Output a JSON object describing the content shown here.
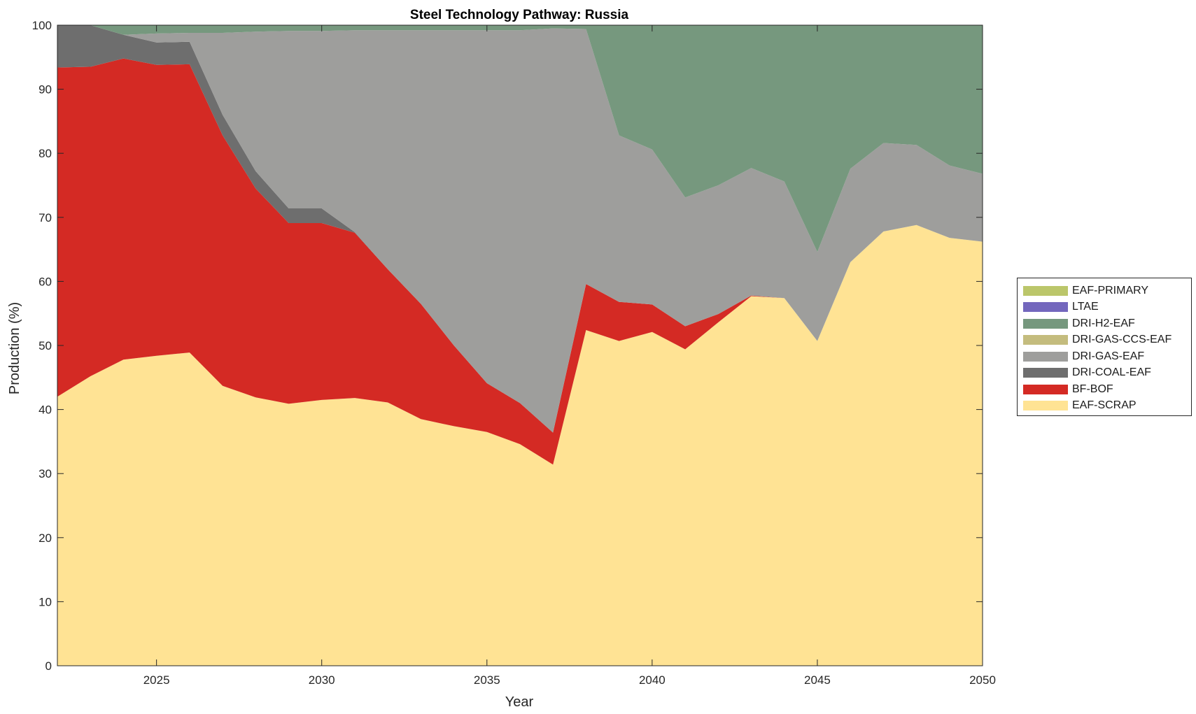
{
  "chart_data": {
    "type": "area",
    "title": "Steel Technology Pathway: Russia",
    "xlabel": "Year",
    "ylabel": "Production (%)",
    "xlim": [
      2022,
      2050
    ],
    "ylim": [
      0,
      100
    ],
    "xticks": [
      2025,
      2030,
      2035,
      2040,
      2045,
      2050
    ],
    "yticks": [
      0,
      10,
      20,
      30,
      40,
      50,
      60,
      70,
      80,
      90,
      100
    ],
    "x": [
      2022,
      2023,
      2024,
      2025,
      2026,
      2027,
      2028,
      2029,
      2030,
      2031,
      2032,
      2033,
      2034,
      2035,
      2036,
      2037,
      2038,
      2039,
      2040,
      2041,
      2042,
      2043,
      2044,
      2045,
      2046,
      2047,
      2048,
      2049,
      2050
    ],
    "stacked": true,
    "grid": false,
    "legend_position": "right",
    "series": [
      {
        "name": "EAF-SCRAP",
        "color": "#FFE394",
        "values": [
          42.0,
          45.2,
          47.8,
          48.4,
          48.9,
          43.7,
          41.9,
          40.9,
          41.5,
          41.8,
          41.1,
          38.5,
          37.4,
          36.5,
          34.6,
          31.4,
          52.4,
          50.7,
          52.1,
          49.4,
          53.6,
          57.7,
          57.4,
          50.7,
          63.0,
          67.8,
          68.8,
          66.8,
          66.2
        ]
      },
      {
        "name": "BF-BOF",
        "color": "#D42A24",
        "values": [
          51.4,
          48.3,
          47.0,
          45.4,
          45.0,
          39.1,
          32.6,
          28.2,
          27.6,
          25.8,
          20.8,
          18.0,
          12.6,
          7.6,
          6.4,
          5.0,
          7.2,
          6.1,
          4.3,
          3.6,
          1.3,
          0.1,
          0,
          0,
          0,
          0,
          0,
          0,
          0
        ]
      },
      {
        "name": "DRI-COAL-EAF",
        "color": "#6E6E6E",
        "values": [
          6.6,
          6.5,
          3.7,
          3.5,
          3.5,
          3.2,
          2.7,
          2.3,
          2.3,
          0.1,
          0,
          0,
          0,
          0,
          0,
          0,
          0,
          0,
          0,
          0,
          0,
          0,
          0,
          0,
          0,
          0,
          0,
          0,
          0
        ]
      },
      {
        "name": "DRI-GAS-EAF",
        "color": "#9E9E9C",
        "values": [
          0,
          0,
          0,
          1.4,
          1.4,
          12.8,
          21.8,
          27.7,
          27.7,
          31.5,
          37.3,
          42.7,
          49.2,
          55.1,
          58.2,
          63.1,
          39.8,
          26.0,
          24.2,
          20.1,
          20.1,
          19.9,
          18.2,
          13.9,
          14.6,
          13.8,
          12.5,
          11.3,
          10.6
        ]
      },
      {
        "name": "DRI-GAS-CCS-EAF",
        "color": "#C4BC7E",
        "values": [
          0,
          0,
          0,
          0,
          0,
          0,
          0,
          0,
          0,
          0,
          0,
          0,
          0,
          0,
          0,
          0,
          0,
          0,
          0,
          0,
          0,
          0,
          0,
          0,
          0,
          0,
          0,
          0,
          0
        ]
      },
      {
        "name": "DRI-H2-EAF",
        "color": "#76987E",
        "values": [
          0,
          0,
          1.5,
          1.3,
          1.2,
          1.2,
          1.0,
          0.9,
          0.9,
          0.8,
          0.8,
          0.8,
          0.8,
          0.8,
          0.8,
          0.5,
          0.6,
          17.2,
          19.4,
          26.9,
          25.0,
          22.3,
          24.4,
          35.4,
          22.4,
          18.4,
          18.7,
          21.9,
          23.2
        ]
      },
      {
        "name": "LTAE",
        "color": "#7367BD",
        "values": [
          0,
          0,
          0,
          0,
          0,
          0,
          0,
          0,
          0,
          0,
          0,
          0,
          0,
          0,
          0,
          0,
          0,
          0,
          0,
          0,
          0,
          0,
          0,
          0,
          0,
          0,
          0,
          0,
          0
        ]
      },
      {
        "name": "EAF-PRIMARY",
        "color": "#BBC66A",
        "values": [
          0,
          0,
          0,
          0,
          0,
          0,
          0,
          0,
          0,
          0,
          0,
          0,
          0,
          0,
          0,
          0,
          0,
          0,
          0,
          0,
          0,
          0,
          0,
          0,
          0,
          0,
          0,
          0,
          0
        ]
      }
    ],
    "legend_order": [
      "EAF-PRIMARY",
      "LTAE",
      "DRI-H2-EAF",
      "DRI-GAS-CCS-EAF",
      "DRI-GAS-EAF",
      "DRI-COAL-EAF",
      "BF-BOF",
      "EAF-SCRAP"
    ]
  }
}
